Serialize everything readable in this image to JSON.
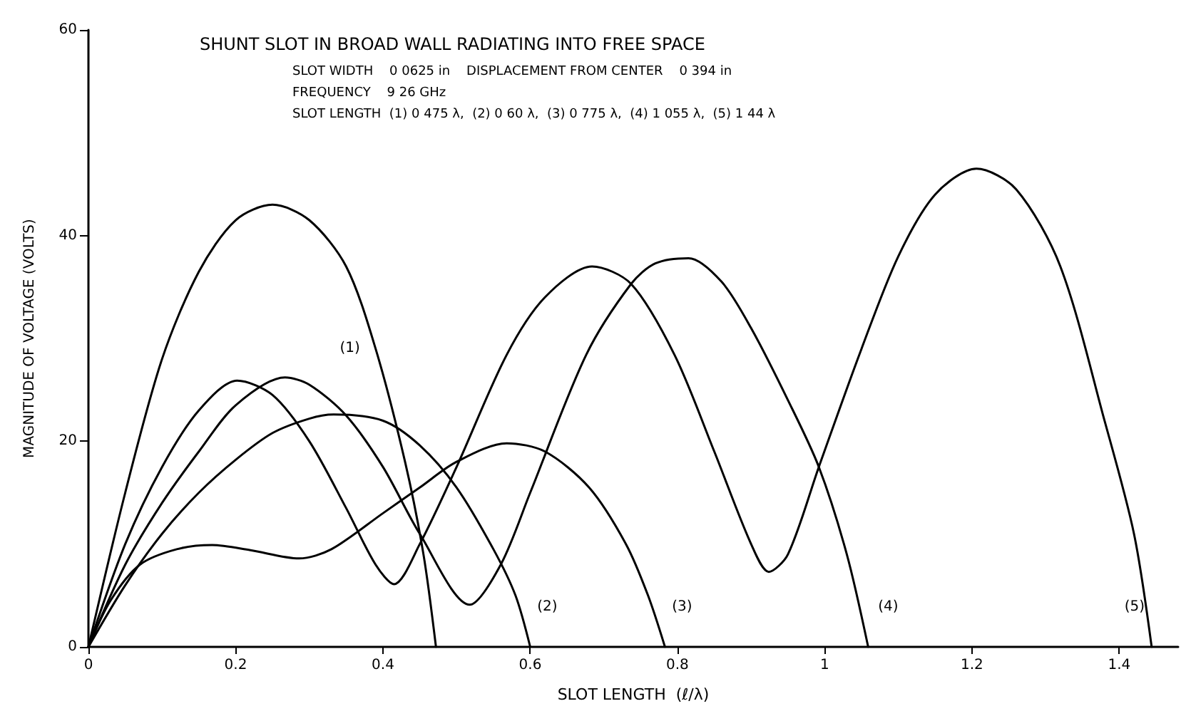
{
  "chart_data": {
    "type": "line",
    "title": "SHUNT SLOT IN BROAD WALL RADIATING INTO FREE SPACE",
    "subtitle": "SLOT WIDTH    0 0625 in    DISPLACEMENT FROM CENTER    0 394 in\nFREQUENCY    9 26 GHz\nSLOT LENGTH  (1) 0 475 λ,  (2) 0 60 λ,  (3) 0 775 λ,  (4) 1 055 λ,  (5) 1 44 λ",
    "xlabel": "SLOT LENGTH  (ℓ/λ)",
    "ylabel": "MAGNITUDE OF VOLTAGE (VOLTS)",
    "xlim": [
      0,
      1.48
    ],
    "ylim": [
      0,
      60
    ],
    "xticks": [
      0,
      0.2,
      0.4,
      0.6,
      0.8,
      1.0,
      1.2,
      1.4
    ],
    "yticks": [
      0,
      20,
      40,
      60
    ],
    "grid": false,
    "marker": "none",
    "line_style": "solid",
    "series": [
      {
        "color": "#000000",
        "x": [
          0,
          0.05,
          0.1,
          0.15,
          0.2,
          0.25,
          0.3,
          0.35,
          0.39,
          0.43,
          0.455,
          0.472
        ],
        "values": [
          0,
          15,
          28,
          36.5,
          41.5,
          43,
          41.5,
          37,
          29,
          18,
          9,
          0
        ]
      },
      {
        "color": "#000000",
        "x": [
          0,
          0.05,
          0.1,
          0.15,
          0.2,
          0.25,
          0.3,
          0.333,
          0.4,
          0.45,
          0.5,
          0.55,
          0.58,
          0.6
        ],
        "values": [
          0,
          6,
          11,
          15,
          18.2,
          20.8,
          22.2,
          22.6,
          22,
          19.6,
          15.5,
          9.5,
          5,
          0
        ]
      },
      {
        "color": "#000000",
        "x": [
          0,
          0.03,
          0.07,
          0.12,
          0.168,
          0.22,
          0.286,
          0.33,
          0.4,
          0.45,
          0.5,
          0.568,
          0.62,
          0.68,
          0.73,
          0.76,
          0.783
        ],
        "values": [
          0,
          4.5,
          8,
          9.5,
          9.9,
          9.4,
          8.6,
          9.5,
          13,
          15.5,
          18,
          19.8,
          19,
          15.5,
          10,
          5,
          0
        ]
      },
      {
        "color": "#000000",
        "x": [
          0,
          0.05,
          0.1,
          0.15,
          0.2,
          0.267,
          0.3,
          0.35,
          0.4,
          0.45,
          0.518,
          0.56,
          0.6,
          0.676,
          0.737,
          0.77,
          0.815,
          0.86,
          0.9,
          0.95,
          0.992,
          1.03,
          1.059
        ],
        "values": [
          0,
          8,
          14,
          19,
          23.5,
          26.2,
          25.5,
          22.5,
          17.5,
          11,
          4.1,
          8,
          15,
          28.4,
          35.3,
          37.3,
          37.8,
          35.5,
          31,
          24,
          17.5,
          9,
          0
        ]
      },
      {
        "color": "#000000",
        "x": [
          0,
          0.05,
          0.1,
          0.15,
          0.202,
          0.25,
          0.3,
          0.35,
          0.39,
          0.415,
          0.45,
          0.5,
          0.568,
          0.62,
          0.684,
          0.737,
          0.796,
          0.85,
          0.9,
          0.924,
          0.95,
          0.992,
          1.05,
          1.1,
          1.15,
          1.206,
          1.26,
          1.32,
          1.38,
          1.42,
          1.444
        ],
        "values": [
          0,
          10,
          17.5,
          23,
          25.9,
          24.5,
          20,
          13.5,
          8,
          6.1,
          10,
          17.5,
          28.4,
          34,
          37,
          35.3,
          28.4,
          19,
          10,
          7.3,
          9,
          17.5,
          29,
          38,
          44,
          46.5,
          44.5,
          37,
          22,
          11,
          0
        ]
      }
    ],
    "annotations": [
      {
        "text": "(1)",
        "x": 0.39,
        "y": 29
      },
      {
        "text": "(2)",
        "x": 0.6,
        "y": 0
      },
      {
        "text": "(3)",
        "x": 0.783,
        "y": 0
      },
      {
        "text": "(4)",
        "x": 1.059,
        "y": 0
      },
      {
        "text": "(5)",
        "x": 1.444,
        "y": 0
      }
    ]
  }
}
